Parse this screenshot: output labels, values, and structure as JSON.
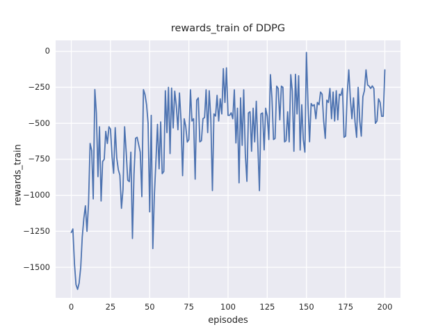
{
  "window": {
    "title": "rewards_train of DDPG"
  },
  "chart_data": {
    "type": "line",
    "title": "rewards_train of DDPG",
    "xlabel": "episodes",
    "ylabel": "rewards_train",
    "x_start": 0,
    "x_step": 1,
    "xlim": [
      -10,
      210
    ],
    "ylim": [
      -1712,
      76
    ],
    "xticks": [
      0,
      25,
      50,
      75,
      100,
      125,
      150,
      175,
      200
    ],
    "yticks": [
      0,
      -250,
      -500,
      -750,
      -1000,
      -1250,
      -1500
    ],
    "xtick_labels": [
      "0",
      "25",
      "50",
      "75",
      "100",
      "125",
      "150",
      "175",
      "200"
    ],
    "ytick_labels": [
      "0",
      "−250",
      "−500",
      "−750",
      "−1000",
      "−1250",
      "−1500"
    ],
    "grid": true,
    "legend": "none",
    "plot_bg_color": "#eaeaf2",
    "grid_color": "#ffffff",
    "line_color": "#4c72b0",
    "text_color": "#262626",
    "series": [
      {
        "name": "rewards_train",
        "values": [
          -1258,
          -1234,
          -1475,
          -1620,
          -1653,
          -1610,
          -1500,
          -1290,
          -1160,
          -1073,
          -1250,
          -1060,
          -640,
          -690,
          -1025,
          -265,
          -430,
          -870,
          -524,
          -1040,
          -766,
          -750,
          -556,
          -640,
          -524,
          -540,
          -734,
          -847,
          -530,
          -740,
          -823,
          -860,
          -1090,
          -960,
          -524,
          -700,
          -895,
          -905,
          -700,
          -1300,
          -855,
          -604,
          -597,
          -650,
          -700,
          -1010,
          -266,
          -300,
          -371,
          -500,
          -1115,
          -445,
          -1370,
          -1000,
          -758,
          -507,
          -816,
          -490,
          -850,
          -834,
          -274,
          -565,
          -250,
          -710,
          -255,
          -532,
          -277,
          -380,
          -545,
          -290,
          -484,
          -864,
          -468,
          -520,
          -630,
          -613,
          -267,
          -484,
          -468,
          -888,
          -339,
          -323,
          -629,
          -621,
          -468,
          -460,
          -267,
          -565,
          -274,
          -468,
          -967,
          -435,
          -450,
          -306,
          -484,
          -330,
          -435,
          -120,
          -355,
          -115,
          -445,
          -444,
          -427,
          -468,
          -267,
          -637,
          -395,
          -913,
          -323,
          -653,
          -267,
          -710,
          -903,
          -428,
          -420,
          -694,
          -395,
          -629,
          -347,
          -650,
          -968,
          -435,
          -428,
          -685,
          -395,
          -452,
          -613,
          -162,
          -323,
          -613,
          -605,
          -242,
          -258,
          -476,
          -242,
          -250,
          -629,
          -621,
          -420,
          -629,
          -162,
          -277,
          -694,
          -160,
          -435,
          -170,
          -686,
          -371,
          -613,
          -700,
          -8,
          -371,
          -628,
          -363,
          -379,
          -371,
          -468,
          -355,
          -371,
          -283,
          -298,
          -484,
          -605,
          -339,
          -355,
          -258,
          -468,
          -283,
          -484,
          -274,
          -476,
          -298,
          -306,
          -258,
          -597,
          -589,
          -300,
          -129,
          -330,
          -468,
          -323,
          -490,
          -597,
          -250,
          -484,
          -589,
          -315,
          -274,
          -129,
          -234,
          -242,
          -258,
          -240,
          -258,
          -500,
          -484,
          -330,
          -355,
          -451,
          -451,
          -129
        ]
      }
    ]
  }
}
